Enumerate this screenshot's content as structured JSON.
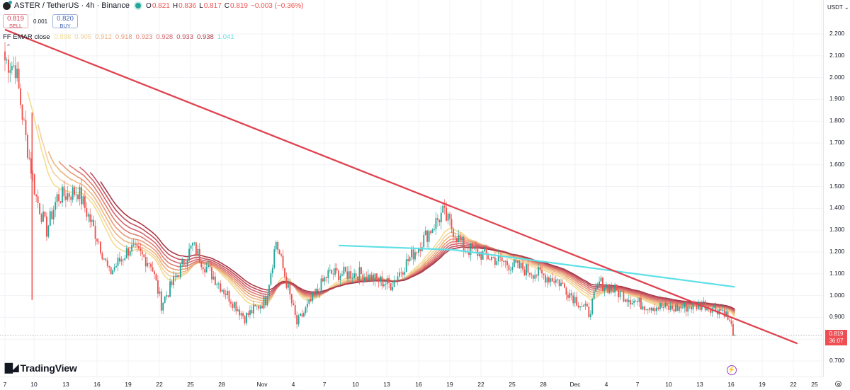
{
  "header": {
    "symbol": "ASTER",
    "quote": "TetherUS",
    "title": "ASTER / TetherUS · 4h · Binance",
    "timeframe": "4h",
    "exchange": "Binance",
    "market_status": "open",
    "ohlc": {
      "open_label": "O",
      "open": "0.821",
      "high_label": "H",
      "high": "0.836",
      "low_label": "L",
      "low": "0.817",
      "close_label": "C",
      "close": "0.819",
      "change": "−0.003 (−0.36%)"
    }
  },
  "trade": {
    "sell_price": "0.819",
    "sell_label": "SELL",
    "spread": "0.001",
    "buy_price": "0.820",
    "buy_label": "BUY"
  },
  "indicator": {
    "name": "FF EMAR close",
    "values": [
      "0.898",
      "0.905",
      "0.912",
      "0.918",
      "0.923",
      "0.928",
      "0.933",
      "0.938",
      "1.041"
    ],
    "colors": [
      "#f3dc8f",
      "#f2cfa0",
      "#eeb57e",
      "#e89a77",
      "#df7f73",
      "#d3666e",
      "#c24f5d",
      "#a83a47",
      "#5ee0e6"
    ]
  },
  "y_axis": {
    "currency": "USDT",
    "labels": [
      "2.200",
      "2.100",
      "2.000",
      "1.900",
      "1.800",
      "1.700",
      "1.600",
      "1.500",
      "1.400",
      "1.300",
      "1.200",
      "1.100",
      "1.000",
      "0.900",
      "0.700"
    ],
    "last_price": "0.819",
    "countdown": "36:07"
  },
  "x_axis": {
    "labels": [
      "7",
      "10",
      "13",
      "16",
      "19",
      "22",
      "25",
      "28",
      "Nov",
      "4",
      "7",
      "10",
      "13",
      "16",
      "19",
      "22",
      "25",
      "28",
      "Dec",
      "4",
      "7",
      "10",
      "13",
      "16",
      "19",
      "22",
      "25"
    ]
  },
  "branding": {
    "logo_text": "TradingView"
  },
  "colors": {
    "up": "#26a69a",
    "down": "#ef5350",
    "trendline": "#e0434f",
    "ema_long": "#5ee0e6",
    "background": "#ffffff",
    "grid": "#f0f3fa"
  },
  "chart_data": {
    "type": "candlestick",
    "title": "ASTER / TetherUS · 4h · Binance",
    "xlabel": "",
    "ylabel": "USDT",
    "ylim": [
      0.66,
      2.27
    ],
    "grid": true,
    "x_ticks": [
      "7",
      "10",
      "13",
      "16",
      "19",
      "22",
      "25",
      "28",
      "Nov",
      "4",
      "7",
      "10",
      "13",
      "16",
      "19",
      "22",
      "25",
      "28",
      "Dec",
      "4",
      "7",
      "10",
      "13",
      "16",
      "19",
      "22",
      "25"
    ],
    "y_ticks": [
      0.7,
      0.9,
      1.0,
      1.1,
      1.2,
      1.3,
      1.4,
      1.5,
      1.6,
      1.7,
      1.8,
      1.9,
      2.0,
      2.1,
      2.2
    ],
    "last_close": 0.819,
    "price_path_keypoints": [
      {
        "date": "Oct 7",
        "price": 2.08
      },
      {
        "date": "Oct 8",
        "price": 2.05
      },
      {
        "date": "Oct 9",
        "price": 1.72
      },
      {
        "date": "Oct 10",
        "price": 1.45
      },
      {
        "date": "Oct 11",
        "price": 1.3
      },
      {
        "date": "Oct 12",
        "price": 1.45
      },
      {
        "date": "Oct 14",
        "price": 1.48
      },
      {
        "date": "Oct 16",
        "price": 1.25
      },
      {
        "date": "Oct 17",
        "price": 1.1
      },
      {
        "date": "Oct 19",
        "price": 1.22
      },
      {
        "date": "Oct 21",
        "price": 1.15
      },
      {
        "date": "Oct 22",
        "price": 0.96
      },
      {
        "date": "Oct 25",
        "price": 1.23
      },
      {
        "date": "Oct 26",
        "price": 1.15
      },
      {
        "date": "Oct 30",
        "price": 0.9
      },
      {
        "date": "Nov 1",
        "price": 0.98
      },
      {
        "date": "Nov 2",
        "price": 1.25
      },
      {
        "date": "Nov 4",
        "price": 0.87
      },
      {
        "date": "Nov 7",
        "price": 1.1
      },
      {
        "date": "Nov 10",
        "price": 1.1
      },
      {
        "date": "Nov 13",
        "price": 1.05
      },
      {
        "date": "Nov 16",
        "price": 1.25
      },
      {
        "date": "Nov 18",
        "price": 1.38
      },
      {
        "date": "Nov 20",
        "price": 1.22
      },
      {
        "date": "Nov 24",
        "price": 1.15
      },
      {
        "date": "Nov 29",
        "price": 1.07
      },
      {
        "date": "Dec 2",
        "price": 0.92
      },
      {
        "date": "Dec 3",
        "price": 1.06
      },
      {
        "date": "Dec 7",
        "price": 0.96
      },
      {
        "date": "Dec 10",
        "price": 0.94
      },
      {
        "date": "Dec 13",
        "price": 0.96
      },
      {
        "date": "Dec 15",
        "price": 0.93
      },
      {
        "date": "Dec 16",
        "price": 0.819
      }
    ],
    "series": [
      {
        "name": "Trendline",
        "type": "line",
        "points": [
          {
            "date": "Oct 7",
            "price": 2.22
          },
          {
            "date": "Nov 18",
            "price": 1.4
          },
          {
            "date": "Dec 22",
            "price": 0.78
          }
        ]
      },
      {
        "name": "EMA long (cyan)",
        "type": "line",
        "points": [
          {
            "date": "Nov 8",
            "price": 1.23
          },
          {
            "date": "Nov 19",
            "price": 1.21
          },
          {
            "date": "Dec 16",
            "price": 1.04
          }
        ]
      },
      {
        "name": "EMA ribbon",
        "type": "line",
        "last_values": [
          0.898,
          0.905,
          0.912,
          0.918,
          0.923,
          0.928,
          0.933,
          0.938
        ]
      }
    ],
    "legend": [
      "FF EMAR close 0.898 0.905 0.912 0.918 0.923 0.928 0.933 0.938 1.041"
    ]
  }
}
